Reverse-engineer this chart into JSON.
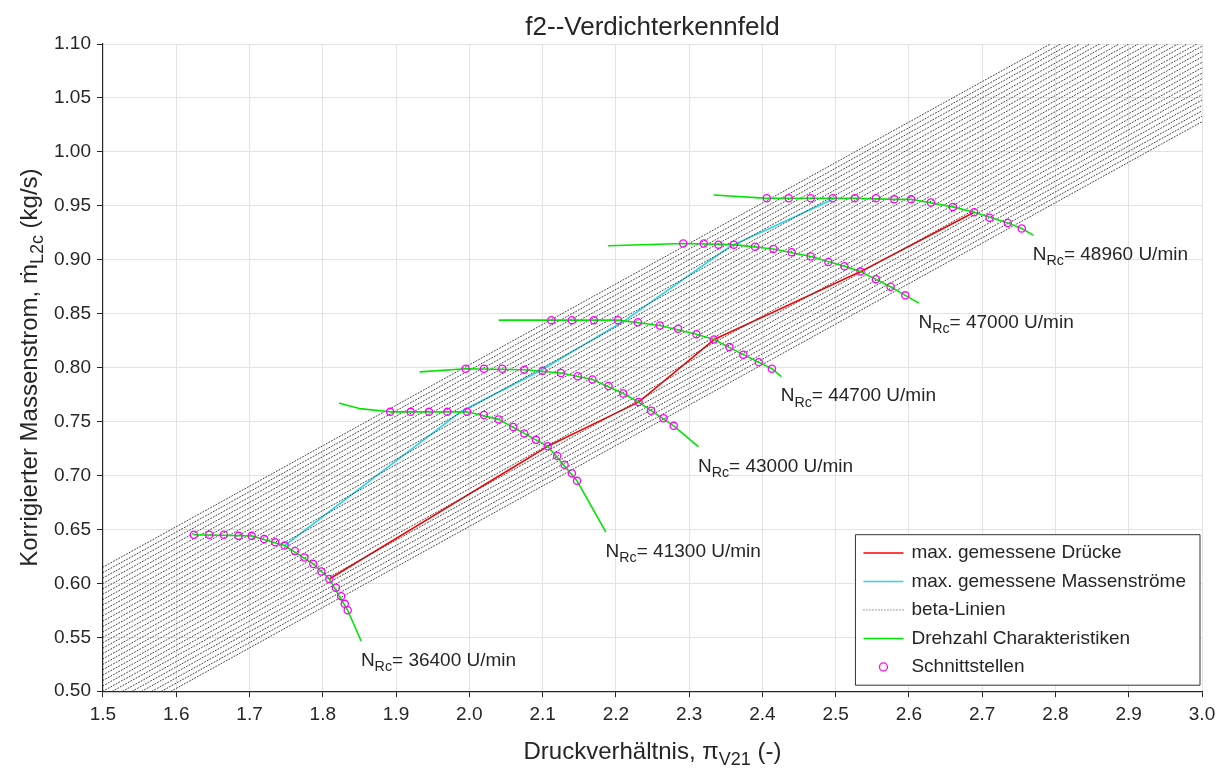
{
  "chart_data": {
    "type": "line",
    "title": "f2--Verdichterkennfeld",
    "xlabel": "Druckverhältnis, π$_{V21}$ (-)",
    "ylabel": "Korrigierter Massenstrom, ṁ$_{L2c}$ (kg/s)",
    "xlim": [
      1.5,
      3.0
    ],
    "xticks": [
      1.5,
      1.6,
      1.7,
      1.8,
      1.9,
      {
        "value": 2,
        "label": "2.0"
      },
      2.1,
      2.2,
      2.3,
      2.4,
      2.5,
      2.6,
      2.7,
      2.8,
      2.9,
      {
        "value": 3,
        "label": "3.0"
      }
    ],
    "ylim": [
      0.5,
      1.1
    ],
    "yticks": [
      {
        "value": 0.5,
        "label": "0.50"
      },
      0.55,
      {
        "value": 0.6,
        "label": "0.60"
      },
      0.65,
      {
        "value": 0.7,
        "label": "0.70"
      },
      0.75,
      {
        "value": 0.8,
        "label": "0.80"
      },
      0.85,
      {
        "value": 0.9,
        "label": "0.90"
      },
      0.95,
      {
        "value": 1,
        "label": "1.00"
      },
      1.05,
      {
        "value": 1.1,
        "label": "1.10"
      }
    ],
    "grid": true,
    "legend": "bottom right",
    "series": [
      {
        "name": "max. gemessene Drücke",
        "color": "#ff0000",
        "x": [
          1.809,
          2.107,
          2.231,
          2.334,
          2.534,
          2.689
        ],
        "values": [
          0.604,
          0.727,
          0.768,
          0.826,
          0.889,
          0.944
        ]
      },
      {
        "name": "max. gemessene Massenströme",
        "color": "#22d8ea",
        "x": [
          1.748,
          1.988,
          2.099,
          2.213,
          2.355,
          2.499
        ],
        "values": [
          0.635,
          0.759,
          0.798,
          0.844,
          0.912,
          0.957
        ]
      },
      {
        "name": "beta-Linien",
        "color": "#404040",
        "line_style": "dotted",
        "x": [
          1.5,
          2.793
        ],
        "values": [
          0.615,
          1.1
        ]
      },
      {
        "color": "#404040",
        "line_style": "dotted",
        "x": [
          1.5,
          2.807
        ],
        "values": [
          0.61,
          1.1
        ]
      },
      {
        "color": "#404040",
        "line_style": "dotted",
        "x": [
          1.5,
          2.82
        ],
        "values": [
          0.605,
          1.1
        ]
      },
      {
        "color": "#404040",
        "line_style": "dotted",
        "x": [
          1.5,
          2.833
        ],
        "values": [
          0.6,
          1.1
        ]
      },
      {
        "color": "#404040",
        "line_style": "dotted",
        "x": [
          1.5,
          2.847
        ],
        "values": [
          0.595,
          1.1
        ]
      },
      {
        "color": "#404040",
        "line_style": "dotted",
        "x": [
          1.5,
          2.86
        ],
        "values": [
          0.59,
          1.1
        ]
      },
      {
        "color": "#404040",
        "line_style": "dotted",
        "x": [
          1.5,
          2.873
        ],
        "values": [
          0.585,
          1.1
        ]
      },
      {
        "color": "#404040",
        "line_style": "dotted",
        "x": [
          1.5,
          2.887
        ],
        "values": [
          0.58,
          1.1
        ]
      },
      {
        "color": "#404040",
        "line_style": "dotted",
        "x": [
          1.5,
          2.9
        ],
        "values": [
          0.575,
          1.1
        ]
      },
      {
        "color": "#404040",
        "line_style": "dotted",
        "x": [
          1.5,
          2.913
        ],
        "values": [
          0.57,
          1.1
        ]
      },
      {
        "color": "#404040",
        "line_style": "dotted",
        "x": [
          1.5,
          2.927
        ],
        "values": [
          0.565,
          1.1
        ]
      },
      {
        "color": "#404040",
        "line_style": "dotted",
        "x": [
          1.5,
          2.94
        ],
        "values": [
          0.56,
          1.1
        ]
      },
      {
        "color": "#404040",
        "line_style": "dotted",
        "x": [
          1.5,
          2.953
        ],
        "values": [
          0.555,
          1.1
        ]
      },
      {
        "color": "#404040",
        "line_style": "dotted",
        "x": [
          1.5,
          2.967
        ],
        "values": [
          0.55,
          1.1
        ]
      },
      {
        "color": "#404040",
        "line_style": "dotted",
        "x": [
          1.5,
          2.98
        ],
        "values": [
          0.545,
          1.1
        ]
      },
      {
        "color": "#404040",
        "line_style": "dotted",
        "x": [
          1.5,
          2.993
        ],
        "values": [
          0.54,
          1.1
        ]
      },
      {
        "color": "#404040",
        "line_style": "dotted",
        "x": [
          1.5,
          3.0
        ],
        "values": [
          0.535,
          1.098
        ]
      },
      {
        "color": "#404040",
        "line_style": "dotted",
        "x": [
          1.5,
          3.0
        ],
        "values": [
          0.53,
          1.093
        ]
      },
      {
        "color": "#404040",
        "line_style": "dotted",
        "x": [
          1.5,
          3.0
        ],
        "values": [
          0.525,
          1.088
        ]
      },
      {
        "color": "#404040",
        "line_style": "dotted",
        "x": [
          1.5,
          3.0
        ],
        "values": [
          0.52,
          1.083
        ]
      },
      {
        "color": "#404040",
        "line_style": "dotted",
        "x": [
          1.5,
          3.0
        ],
        "values": [
          0.515,
          1.078
        ]
      },
      {
        "color": "#404040",
        "line_style": "dotted",
        "x": [
          1.5,
          3.0
        ],
        "values": [
          0.51,
          1.073
        ]
      },
      {
        "color": "#404040",
        "line_style": "dotted",
        "x": [
          1.5,
          3.0
        ],
        "values": [
          0.505,
          1.068
        ]
      },
      {
        "color": "#404040",
        "line_style": "dotted",
        "x": [
          1.5,
          3.0
        ],
        "values": [
          0.5,
          1.063
        ]
      },
      {
        "color": "#404040",
        "line_style": "dotted",
        "x": [
          1.513,
          3.0
        ],
        "values": [
          0.5,
          1.058
        ]
      },
      {
        "color": "#404040",
        "line_style": "dotted",
        "x": [
          1.527,
          3.0
        ],
        "values": [
          0.5,
          1.053
        ]
      },
      {
        "color": "#404040",
        "line_style": "dotted",
        "x": [
          1.54,
          3.0
        ],
        "values": [
          0.5,
          1.048
        ]
      },
      {
        "color": "#404040",
        "line_style": "dotted",
        "x": [
          1.553,
          3.0
        ],
        "values": [
          0.5,
          1.043
        ]
      },
      {
        "color": "#404040",
        "line_style": "dotted",
        "x": [
          1.567,
          3.0
        ],
        "values": [
          0.5,
          1.038
        ]
      },
      {
        "color": "#404040",
        "line_style": "dotted",
        "x": [
          1.58,
          3.0
        ],
        "values": [
          0.5,
          1.033
        ]
      },
      {
        "color": "#404040",
        "line_style": "dotted",
        "x": [
          1.593,
          3.0
        ],
        "values": [
          0.5,
          1.028
        ]
      },
      {
        "name": "Drehzahl Charakteristiken",
        "color": "#00e600",
        "x": [
          1.624,
          1.703,
          1.748,
          1.787,
          1.809,
          1.834,
          1.852
        ],
        "values": [
          0.645,
          0.644,
          0.635,
          0.618,
          0.604,
          0.575,
          0.547
        ]
      },
      {
        "color": "#00e600",
        "x": [
          1.823,
          1.85,
          1.892,
          1.997,
          2.04,
          2.075,
          2.107,
          2.147,
          2.186
        ],
        "values": [
          0.767,
          0.762,
          0.759,
          0.759,
          0.752,
          0.739,
          0.727,
          0.695,
          0.648
        ]
      },
      {
        "color": "#00e600",
        "x": [
          1.933,
          1.995,
          2.075,
          2.125,
          2.168,
          2.21,
          2.231,
          2.279,
          2.312
        ],
        "values": [
          0.796,
          0.799,
          0.798,
          0.795,
          0.789,
          0.776,
          0.768,
          0.746,
          0.727
        ]
      },
      {
        "color": "#00e600",
        "x": [
          2.041,
          2.112,
          2.203,
          2.26,
          2.31,
          2.334,
          2.374,
          2.413,
          2.425
        ],
        "values": [
          0.844,
          0.844,
          0.844,
          0.839,
          0.831,
          0.826,
          0.812,
          0.799,
          0.792
        ]
      },
      {
        "color": "#00e600",
        "x": [
          2.19,
          2.292,
          2.361,
          2.415,
          2.466,
          2.512,
          2.534,
          2.575,
          2.595,
          2.613
        ],
        "values": [
          0.913,
          0.915,
          0.914,
          0.91,
          0.903,
          0.894,
          0.889,
          0.875,
          0.867,
          0.86
        ]
      },
      {
        "color": "#00e600",
        "x": [
          2.334,
          2.406,
          2.526,
          2.58,
          2.603,
          2.66,
          2.689,
          2.735,
          2.754,
          2.769
        ],
        "values": [
          0.96,
          0.957,
          0.957,
          0.956,
          0.956,
          0.949,
          0.944,
          0.934,
          0.929,
          0.923
        ]
      },
      {
        "name": "Schnittstellen",
        "type": "scatter",
        "marker": "circle",
        "color": "#ff00ff",
        "x": [
          1.624,
          1.645,
          1.665,
          1.685,
          1.703,
          1.72,
          1.735,
          1.748,
          1.762,
          1.775,
          1.787,
          1.798,
          1.809,
          1.818,
          1.825,
          1.83,
          1.834,
          1.892,
          1.92,
          1.945,
          1.97,
          1.997,
          2.02,
          2.04,
          2.06,
          2.075,
          2.091,
          2.107,
          2.12,
          2.13,
          2.14,
          2.147,
          1.995,
          2.02,
          2.045,
          2.075,
          2.1,
          2.125,
          2.148,
          2.168,
          2.19,
          2.21,
          2.231,
          2.248,
          2.265,
          2.279,
          2.112,
          2.14,
          2.17,
          2.203,
          2.23,
          2.26,
          2.285,
          2.31,
          2.334,
          2.355,
          2.374,
          2.395,
          2.413,
          2.292,
          2.32,
          2.34,
          2.361,
          2.39,
          2.415,
          2.44,
          2.466,
          2.49,
          2.512,
          2.534,
          2.555,
          2.575,
          2.595,
          2.406,
          2.436,
          2.466,
          2.496,
          2.526,
          2.555,
          2.58,
          2.603,
          2.63,
          2.66,
          2.689,
          2.71,
          2.735,
          2.754
        ],
        "values": [
          0.645,
          0.645,
          0.645,
          0.644,
          0.644,
          0.641,
          0.638,
          0.635,
          0.63,
          0.624,
          0.618,
          0.611,
          0.604,
          0.596,
          0.588,
          0.581,
          0.575,
          0.759,
          0.759,
          0.759,
          0.759,
          0.759,
          0.756,
          0.752,
          0.745,
          0.739,
          0.733,
          0.727,
          0.718,
          0.71,
          0.702,
          0.695,
          0.799,
          0.799,
          0.799,
          0.798,
          0.797,
          0.795,
          0.792,
          0.789,
          0.783,
          0.776,
          0.768,
          0.76,
          0.753,
          0.746,
          0.844,
          0.844,
          0.844,
          0.844,
          0.842,
          0.839,
          0.836,
          0.831,
          0.826,
          0.819,
          0.812,
          0.805,
          0.799,
          0.915,
          0.915,
          0.914,
          0.914,
          0.912,
          0.91,
          0.907,
          0.903,
          0.898,
          0.894,
          0.889,
          0.882,
          0.875,
          0.867,
          0.957,
          0.957,
          0.957,
          0.957,
          0.957,
          0.957,
          0.956,
          0.956,
          0.953,
          0.949,
          0.944,
          0.939,
          0.934,
          0.929
        ]
      }
    ],
    "annotations": [
      {
        "text": "N$_{Rc}$= 36400 U/min",
        "x": 1.852,
        "y": 0.547
      },
      {
        "text": "N$_{Rc}$= 41300 U/min",
        "x": 2.186,
        "y": 0.648
      },
      {
        "text": "N$_{Rc}$= 43000 U/min",
        "x": 2.312,
        "y": 0.727
      },
      {
        "text": "N$_{Rc}$= 44700 U/min",
        "x": 2.425,
        "y": 0.792
      },
      {
        "text": "N$_{Rc}$= 47000 U/min",
        "x": 2.613,
        "y": 0.86
      },
      {
        "text": "N$_{Rc}$= 48960 U/min",
        "x": 2.769,
        "y": 0.923
      }
    ]
  }
}
